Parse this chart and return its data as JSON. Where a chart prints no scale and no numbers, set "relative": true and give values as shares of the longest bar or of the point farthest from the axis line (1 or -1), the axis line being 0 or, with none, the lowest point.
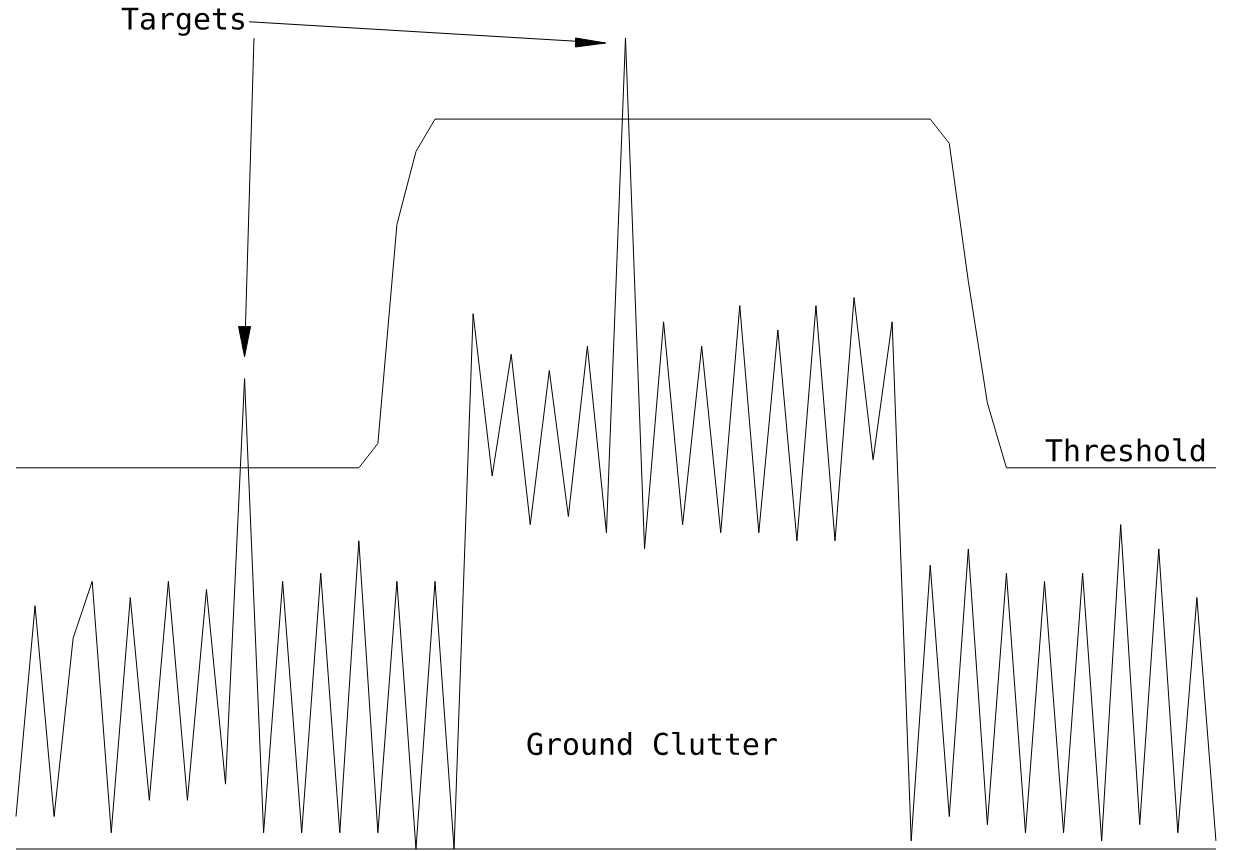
{
  "chart_data": {
    "type": "line",
    "relative": true,
    "marker": "none",
    "line_style": "solid",
    "categories": [
      null,
      null,
      null,
      null,
      null,
      null,
      null,
      null,
      null,
      null,
      null,
      null,
      null,
      null,
      null,
      null,
      null,
      null,
      null,
      null,
      null,
      null,
      null,
      null,
      null,
      null,
      null,
      null,
      null,
      null,
      null,
      null,
      null,
      null,
      null,
      null,
      null,
      null,
      null,
      null,
      null,
      null,
      null,
      null,
      null,
      null,
      null,
      null,
      null,
      null,
      null,
      null,
      null,
      null,
      null,
      null,
      null,
      null,
      null,
      null,
      null,
      null,
      null,
      null
    ],
    "series": [
      {
        "color": "#000000",
        "values": [
          0.04,
          0.3,
          0.04,
          0.26,
          0.33,
          0.02,
          0.31,
          0.06,
          0.33,
          0.06,
          0.32,
          0.08,
          0.58,
          0.02,
          0.33,
          0.02,
          0.34,
          0.02,
          0.38,
          0.02,
          0.33,
          0,
          0.33,
          0,
          0.66,
          0.46,
          0.61,
          0.4,
          0.59,
          0.41,
          0.62,
          0.39,
          1,
          0.37,
          0.65,
          0.4,
          0.62,
          0.39,
          0.67,
          0.39,
          0.64,
          0.38,
          0.67,
          0.38,
          0.68,
          0.48,
          0.65,
          0.01,
          0.35,
          0.04,
          0.37,
          0.03,
          0.34,
          0.02,
          0.33,
          0.02,
          0.34,
          0.01,
          0.4,
          0.03,
          0.37,
          0.02,
          0.31,
          0.01
        ]
      },
      {
        "color": "#000000",
        "values": [
          0.47,
          0.47,
          0.47,
          0.47,
          0.47,
          0.47,
          0.47,
          0.47,
          0.47,
          0.47,
          0.47,
          0.47,
          0.47,
          0.47,
          0.47,
          0.47,
          0.47,
          0.47,
          0.47,
          0.5,
          0.77,
          0.86,
          0.9,
          0.9,
          0.9,
          0.9,
          0.9,
          0.9,
          0.9,
          0.9,
          0.9,
          0.9,
          0.9,
          0.9,
          0.9,
          0.9,
          0.9,
          0.9,
          0.9,
          0.9,
          0.9,
          0.9,
          0.9,
          0.9,
          0.9,
          0.9,
          0.9,
          0.9,
          0.9,
          0.87,
          0.7,
          0.55,
          0.47,
          0.47,
          0.47,
          0.47,
          0.47,
          0.47,
          0.47,
          0.47,
          0.47,
          0.47,
          0.47,
          0.47
        ]
      }
    ],
    "annotations": [
      "Targets",
      "Threshold",
      "Ground Clutter"
    ]
  }
}
